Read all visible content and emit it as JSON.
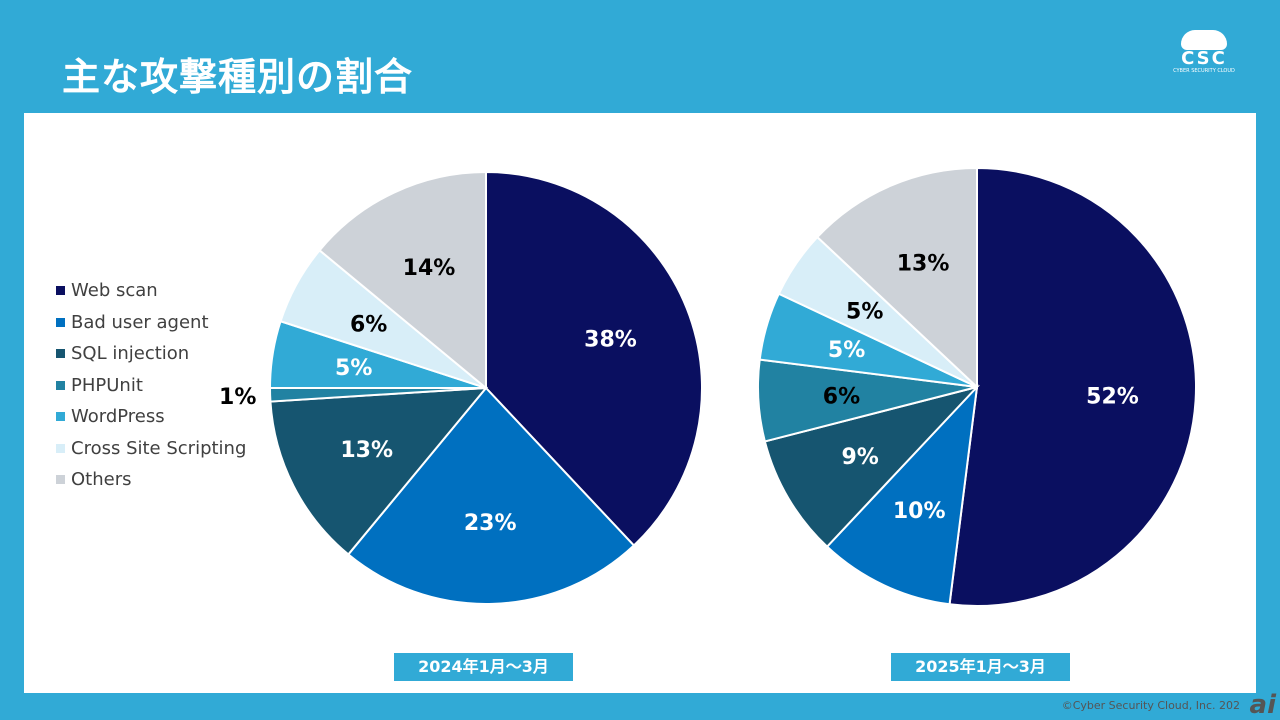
{
  "title": "主な攻撃種別の割合",
  "logo": {
    "mark": "CSC",
    "sub": "CYBER SECURITY CLOUD"
  },
  "copyright": "©Cyber Security Cloud, Inc. 202",
  "corner_logo": "ai",
  "chart_data": [
    {
      "type": "pie",
      "title": "2024年1月～3月",
      "categories": [
        "Web scan",
        "Bad user agent",
        "SQL injection",
        "PHPUnit",
        "WordPress",
        "Cross Site Scripting",
        "Others"
      ],
      "values": [
        38,
        23,
        13,
        1,
        5,
        6,
        14
      ],
      "labels": [
        "38%",
        "23%",
        "13%",
        "1%",
        "5%",
        "6%",
        "14%"
      ]
    },
    {
      "type": "pie",
      "title": "2025年1月～3月",
      "categories": [
        "Web scan",
        "Bad user agent",
        "SQL injection",
        "PHPUnit",
        "WordPress",
        "Cross Site Scripting",
        "Others"
      ],
      "values": [
        52,
        10,
        9,
        6,
        5,
        5,
        13
      ],
      "labels": [
        "52%",
        "10%",
        "9%",
        "6%",
        "5%",
        "5%",
        "13%"
      ]
    }
  ],
  "legend": [
    "Web scan",
    "Bad user agent",
    "SQL injection",
    "PHPUnit",
    "WordPress",
    "Cross Site Scripting",
    "Others"
  ],
  "colors": [
    "#0A0F60",
    "#0070C0",
    "#165570",
    "#2182A2",
    "#31AAD6",
    "#D8EEF8",
    "#CDD2D8"
  ],
  "label_colors": [
    "#fff",
    "#fff",
    "#fff",
    "#000",
    "#fff",
    "#000",
    "#000"
  ]
}
